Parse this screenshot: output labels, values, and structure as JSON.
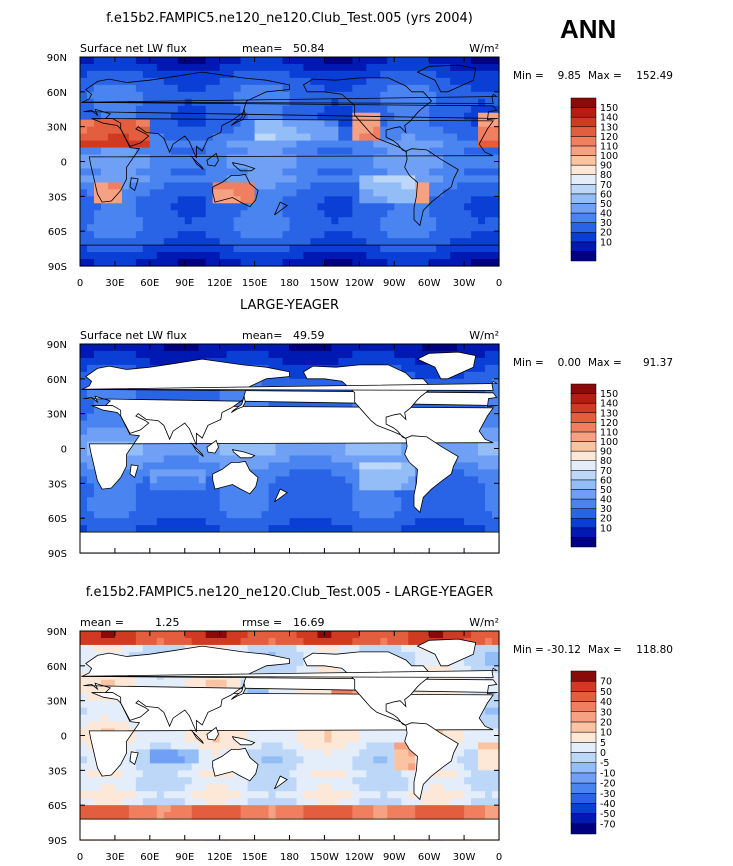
{
  "season": "ANN",
  "colors": {
    "test_levels": [
      "#000080",
      "#0019b3",
      "#0a3fd6",
      "#2a64e6",
      "#4a84f0",
      "#6fa0f5",
      "#93bdf7",
      "#bcd7f8",
      "#e4eefa",
      "#fde7d6",
      "#fac3a2",
      "#f7a183",
      "#f07f60",
      "#e35d3f",
      "#d13a22",
      "#b51c12",
      "#8a0a0a"
    ],
    "diff_levels": [
      "#000080",
      "#0019b3",
      "#0a3fd6",
      "#2a64e6",
      "#4a84f0",
      "#6fa0f5",
      "#93bdf7",
      "#bcd7f8",
      "#e4eefa",
      "#fde7d6",
      "#fac3a2",
      "#f7a183",
      "#f07f60",
      "#e35d3f",
      "#d13a22",
      "#8a0a0a"
    ],
    "land": "#ffffff",
    "coast": "#000000"
  },
  "chart_data": [
    {
      "type": "heatmap",
      "title": "f.e15b2.FAMPIC5.ne120_ne120.Club_Test.005 (yrs 2004)",
      "left_label": "Surface net LW flux",
      "stat_label": "mean=",
      "stat_value": "50.84",
      "units": "W/m²",
      "min_label": "Min =",
      "min_value": "9.85",
      "max_label": "Max =",
      "max_value": "152.49",
      "land_masked": false,
      "x_ticks": [
        "0",
        "30E",
        "60E",
        "90E",
        "120E",
        "150E",
        "180",
        "150W",
        "120W",
        "90W",
        "60W",
        "30W",
        "0"
      ],
      "y_ticks": [
        "90N",
        "60N",
        "30N",
        "0",
        "30S",
        "60S",
        "90S"
      ],
      "colorbar_labels": [
        "150",
        "140",
        "130",
        "120",
        "110",
        "100",
        "90",
        "80",
        "70",
        "60",
        "50",
        "40",
        "30",
        "20",
        "10"
      ]
    },
    {
      "type": "heatmap",
      "title": "LARGE-YEAGER",
      "left_label": "Surface net LW flux",
      "stat_label": "mean=",
      "stat_value": "49.59",
      "units": "W/m²",
      "min_label": "Min =",
      "min_value": "0.00",
      "max_label": "Max =",
      "max_value": "91.37",
      "land_masked": true,
      "x_ticks": [],
      "y_ticks": [
        "90N",
        "60N",
        "30N",
        "0",
        "30S",
        "60S",
        "90S"
      ],
      "colorbar_labels": [
        "150",
        "140",
        "130",
        "120",
        "110",
        "100",
        "90",
        "80",
        "70",
        "60",
        "50",
        "40",
        "30",
        "20",
        "10"
      ]
    },
    {
      "type": "heatmap",
      "title": "f.e15b2.FAMPIC5.ne120_ne120.Club_Test.005 - LARGE-YEAGER",
      "left_label": "mean =",
      "left_value": "1.25",
      "stat_label": "rmse =",
      "stat_value": "16.69",
      "units": "W/m²",
      "min_label": "Min =",
      "min_value": "-30.12",
      "max_label": "Max =",
      "max_value": "118.80",
      "land_masked": true,
      "x_ticks": [
        "0",
        "30E",
        "60E",
        "90E",
        "120E",
        "150E",
        "180",
        "150W",
        "120W",
        "90W",
        "60W",
        "30W",
        "0"
      ],
      "y_ticks": [
        "90N",
        "60N",
        "30N",
        "0",
        "30S",
        "60S",
        "90S"
      ],
      "colorbar_labels": [
        "70",
        "50",
        "40",
        "30",
        "20",
        "10",
        "5",
        "0",
        "-5",
        "-10",
        "-20",
        "-30",
        "-40",
        "-50",
        "-70"
      ]
    }
  ]
}
